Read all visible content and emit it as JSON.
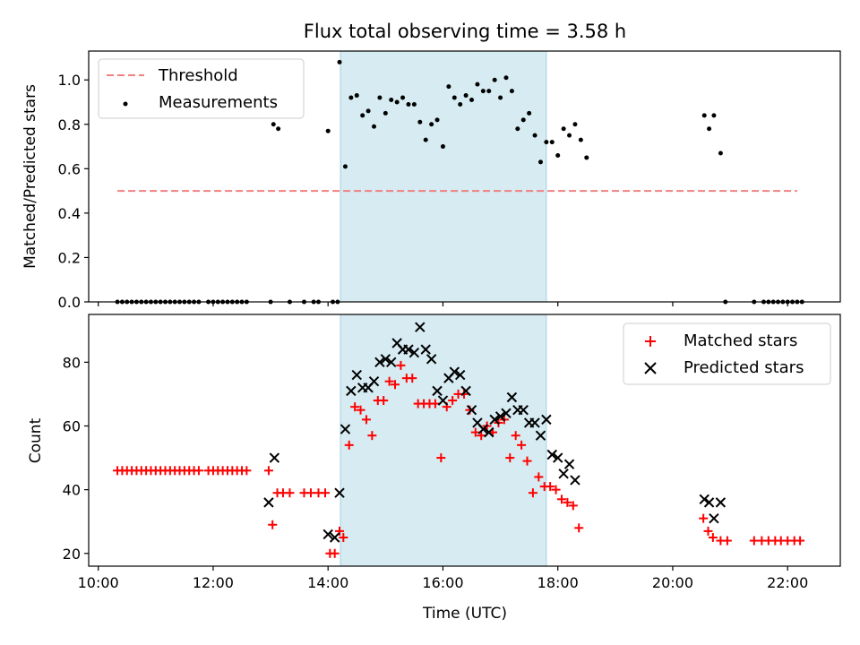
{
  "chart_data": [
    {
      "type": "scatter",
      "title": "Flux total observing time = 3.58 h",
      "ylabel": "Matched/Predicted stars",
      "ylim": [
        0,
        1.13
      ],
      "yticks": [
        "0.0",
        "0.2",
        "0.4",
        "0.6",
        "0.8",
        "1.0"
      ],
      "xlim": [
        "09:50",
        "22:55"
      ],
      "legend_position": "upper-left",
      "highlight_span": [
        "14:13",
        "17:48"
      ],
      "threshold": {
        "name": "Threshold",
        "value": 0.5,
        "x": [
          "10:20",
          "22:10"
        ],
        "color": "#f08080",
        "style": "dashed"
      },
      "series": [
        {
          "name": "Measurements",
          "color": "#000000",
          "marker": "dot",
          "points": [
            [
              "10:20",
              0
            ],
            [
              "10:25",
              0
            ],
            [
              "10:30",
              0
            ],
            [
              "10:35",
              0
            ],
            [
              "10:40",
              0
            ],
            [
              "10:45",
              0
            ],
            [
              "10:50",
              0
            ],
            [
              "10:55",
              0
            ],
            [
              "11:00",
              0
            ],
            [
              "11:05",
              0
            ],
            [
              "11:10",
              0
            ],
            [
              "11:15",
              0
            ],
            [
              "11:20",
              0
            ],
            [
              "11:25",
              0
            ],
            [
              "11:30",
              0
            ],
            [
              "11:35",
              0
            ],
            [
              "11:40",
              0
            ],
            [
              "11:45",
              0
            ],
            [
              "11:55",
              0
            ],
            [
              "12:00",
              0
            ],
            [
              "12:05",
              0
            ],
            [
              "12:10",
              0
            ],
            [
              "12:15",
              0
            ],
            [
              "12:20",
              0
            ],
            [
              "12:25",
              0
            ],
            [
              "12:30",
              0
            ],
            [
              "12:35",
              0
            ],
            [
              "13:00",
              0
            ],
            [
              "13:20",
              0
            ],
            [
              "13:35",
              0
            ],
            [
              "13:45",
              0
            ],
            [
              "13:50",
              0
            ],
            [
              "14:05",
              0
            ],
            [
              "14:10",
              0
            ],
            [
              "13:03",
              0.8
            ],
            [
              "13:08",
              0.78
            ],
            [
              "14:00",
              0.77
            ],
            [
              "14:12",
              1.08
            ],
            [
              "14:18",
              0.61
            ],
            [
              "14:24",
              0.92
            ],
            [
              "14:30",
              0.93
            ],
            [
              "14:36",
              0.84
            ],
            [
              "14:42",
              0.86
            ],
            [
              "14:48",
              0.79
            ],
            [
              "14:54",
              0.92
            ],
            [
              "15:00",
              0.85
            ],
            [
              "15:06",
              0.91
            ],
            [
              "15:12",
              0.9
            ],
            [
              "15:18",
              0.92
            ],
            [
              "15:24",
              0.89
            ],
            [
              "15:30",
              0.89
            ],
            [
              "15:36",
              0.81
            ],
            [
              "15:42",
              0.73
            ],
            [
              "15:48",
              0.8
            ],
            [
              "15:54",
              0.82
            ],
            [
              "16:00",
              0.7
            ],
            [
              "16:06",
              0.97
            ],
            [
              "16:12",
              0.92
            ],
            [
              "16:18",
              0.89
            ],
            [
              "16:24",
              0.93
            ],
            [
              "16:30",
              0.91
            ],
            [
              "16:36",
              0.98
            ],
            [
              "16:42",
              0.95
            ],
            [
              "16:48",
              0.95
            ],
            [
              "16:54",
              1.0
            ],
            [
              "17:00",
              0.92
            ],
            [
              "17:06",
              1.01
            ],
            [
              "17:12",
              0.95
            ],
            [
              "17:18",
              0.78
            ],
            [
              "17:24",
              0.82
            ],
            [
              "17:30",
              0.85
            ],
            [
              "17:36",
              0.75
            ],
            [
              "17:42",
              0.63
            ],
            [
              "17:48",
              0.72
            ],
            [
              "17:54",
              0.72
            ],
            [
              "18:00",
              0.66
            ],
            [
              "18:06",
              0.78
            ],
            [
              "18:12",
              0.75
            ],
            [
              "18:18",
              0.8
            ],
            [
              "18:24",
              0.73
            ],
            [
              "18:30",
              0.65
            ],
            [
              "20:33",
              0.84
            ],
            [
              "20:38",
              0.78
            ],
            [
              "20:43",
              0.84
            ],
            [
              "20:50",
              0.67
            ],
            [
              "20:55",
              0
            ],
            [
              "21:25",
              0
            ],
            [
              "21:35",
              0
            ],
            [
              "21:40",
              0
            ],
            [
              "21:45",
              0
            ],
            [
              "21:50",
              0
            ],
            [
              "21:55",
              0
            ],
            [
              "22:00",
              0
            ],
            [
              "22:05",
              0
            ],
            [
              "22:10",
              0
            ],
            [
              "22:15",
              0
            ]
          ]
        }
      ]
    },
    {
      "type": "scatter",
      "xlabel": "Time (UTC)",
      "ylabel": "Count",
      "ylim": [
        16,
        95
      ],
      "yticks": [
        "20",
        "40",
        "60",
        "80"
      ],
      "xlim": [
        "09:50",
        "22:55"
      ],
      "xticks": [
        "10:00",
        "12:00",
        "14:00",
        "16:00",
        "18:00",
        "20:00",
        "22:00"
      ],
      "legend_position": "upper-right",
      "highlight_span": [
        "14:13",
        "17:48"
      ],
      "series": [
        {
          "name": "Matched stars",
          "color": "#ff0000",
          "marker": "plus",
          "points": [
            [
              "10:20",
              46
            ],
            [
              "10:25",
              46
            ],
            [
              "10:30",
              46
            ],
            [
              "10:35",
              46
            ],
            [
              "10:40",
              46
            ],
            [
              "10:45",
              46
            ],
            [
              "10:50",
              46
            ],
            [
              "10:55",
              46
            ],
            [
              "11:00",
              46
            ],
            [
              "11:05",
              46
            ],
            [
              "11:10",
              46
            ],
            [
              "11:15",
              46
            ],
            [
              "11:20",
              46
            ],
            [
              "11:25",
              46
            ],
            [
              "11:30",
              46
            ],
            [
              "11:35",
              46
            ],
            [
              "11:40",
              46
            ],
            [
              "11:45",
              46
            ],
            [
              "11:55",
              46
            ],
            [
              "12:00",
              46
            ],
            [
              "12:05",
              46
            ],
            [
              "12:10",
              46
            ],
            [
              "12:15",
              46
            ],
            [
              "12:20",
              46
            ],
            [
              "12:25",
              46
            ],
            [
              "12:30",
              46
            ],
            [
              "12:35",
              46
            ],
            [
              "12:58",
              46
            ],
            [
              "13:02",
              29
            ],
            [
              "13:07",
              39
            ],
            [
              "13:13",
              39
            ],
            [
              "13:20",
              39
            ],
            [
              "13:35",
              39
            ],
            [
              "13:42",
              39
            ],
            [
              "13:50",
              39
            ],
            [
              "13:57",
              39
            ],
            [
              "14:02",
              20
            ],
            [
              "14:07",
              20
            ],
            [
              "14:12",
              27
            ],
            [
              "14:16",
              25
            ],
            [
              "14:22",
              54
            ],
            [
              "14:28",
              66
            ],
            [
              "14:34",
              65
            ],
            [
              "14:40",
              62
            ],
            [
              "14:46",
              57
            ],
            [
              "14:52",
              68
            ],
            [
              "14:58",
              68
            ],
            [
              "15:04",
              74
            ],
            [
              "15:10",
              73
            ],
            [
              "15:16",
              79
            ],
            [
              "15:22",
              75
            ],
            [
              "15:28",
              75
            ],
            [
              "15:34",
              67
            ],
            [
              "15:40",
              67
            ],
            [
              "15:46",
              67
            ],
            [
              "15:52",
              67
            ],
            [
              "15:58",
              50
            ],
            [
              "16:04",
              66
            ],
            [
              "16:10",
              68
            ],
            [
              "16:16",
              70
            ],
            [
              "16:22",
              70
            ],
            [
              "16:28",
              65
            ],
            [
              "16:34",
              58
            ],
            [
              "16:40",
              57
            ],
            [
              "16:46",
              60
            ],
            [
              "16:52",
              58
            ],
            [
              "16:58",
              61
            ],
            [
              "17:04",
              62
            ],
            [
              "17:10",
              50
            ],
            [
              "17:16",
              57
            ],
            [
              "17:22",
              54
            ],
            [
              "17:28",
              49
            ],
            [
              "17:34",
              39
            ],
            [
              "17:40",
              44
            ],
            [
              "17:46",
              41
            ],
            [
              "17:52",
              41
            ],
            [
              "17:58",
              40
            ],
            [
              "18:04",
              37
            ],
            [
              "18:10",
              36
            ],
            [
              "18:16",
              35
            ],
            [
              "18:22",
              28
            ],
            [
              "20:32",
              31
            ],
            [
              "20:37",
              27
            ],
            [
              "20:42",
              25
            ],
            [
              "20:50",
              24
            ],
            [
              "20:57",
              24
            ],
            [
              "21:25",
              24
            ],
            [
              "21:33",
              24
            ],
            [
              "21:40",
              24
            ],
            [
              "21:47",
              24
            ],
            [
              "21:53",
              24
            ],
            [
              "22:00",
              24
            ],
            [
              "22:07",
              24
            ],
            [
              "22:13",
              24
            ]
          ]
        },
        {
          "name": "Predicted stars",
          "color": "#000000",
          "marker": "x",
          "points": [
            [
              "12:58",
              36
            ],
            [
              "13:04",
              50
            ],
            [
              "14:00",
              26
            ],
            [
              "14:07",
              25
            ],
            [
              "14:12",
              39
            ],
            [
              "14:18",
              59
            ],
            [
              "14:24",
              71
            ],
            [
              "14:30",
              76
            ],
            [
              "14:36",
              72
            ],
            [
              "14:42",
              72
            ],
            [
              "14:48",
              74
            ],
            [
              "14:54",
              80
            ],
            [
              "15:00",
              81
            ],
            [
              "15:06",
              80
            ],
            [
              "15:12",
              86
            ],
            [
              "15:18",
              84
            ],
            [
              "15:24",
              84
            ],
            [
              "15:30",
              83
            ],
            [
              "15:36",
              91
            ],
            [
              "15:42",
              84
            ],
            [
              "15:48",
              81
            ],
            [
              "15:54",
              71
            ],
            [
              "16:00",
              68
            ],
            [
              "16:06",
              75
            ],
            [
              "16:12",
              77
            ],
            [
              "16:18",
              76
            ],
            [
              "16:24",
              71
            ],
            [
              "16:30",
              65
            ],
            [
              "16:36",
              61
            ],
            [
              "16:42",
              59
            ],
            [
              "16:48",
              58
            ],
            [
              "16:54",
              62
            ],
            [
              "17:00",
              63
            ],
            [
              "17:06",
              64
            ],
            [
              "17:12",
              69
            ],
            [
              "17:18",
              65
            ],
            [
              "17:24",
              65
            ],
            [
              "17:30",
              61
            ],
            [
              "17:36",
              61
            ],
            [
              "17:42",
              57
            ],
            [
              "17:48",
              62
            ],
            [
              "17:54",
              51
            ],
            [
              "18:00",
              50
            ],
            [
              "18:06",
              45
            ],
            [
              "18:12",
              48
            ],
            [
              "18:18",
              43
            ],
            [
              "20:33",
              37
            ],
            [
              "20:38",
              36
            ],
            [
              "20:43",
              31
            ],
            [
              "20:50",
              36
            ]
          ]
        }
      ]
    }
  ]
}
